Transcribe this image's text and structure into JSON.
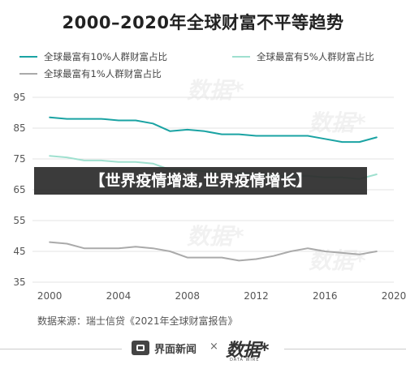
{
  "chart_data": {
    "type": "line",
    "title": "2000–2020年全球财富不平等趋势",
    "x": [
      2000,
      2001,
      2002,
      2003,
      2004,
      2005,
      2006,
      2007,
      2008,
      2009,
      2010,
      2011,
      2012,
      2013,
      2014,
      2015,
      2016,
      2017,
      2018,
      2019
    ],
    "x_ticks": [
      2000,
      2004,
      2008,
      2012,
      2016,
      2020
    ],
    "y_ticks": [
      35,
      45,
      55,
      65,
      75,
      85,
      95
    ],
    "xlim": [
      1999,
      2020
    ],
    "ylim": [
      35,
      95
    ],
    "grid": "horizontal",
    "legend_position": "top",
    "series": [
      {
        "name": "全球最富有10%人群财富占比",
        "color": "#1aa3a3",
        "values": [
          88.5,
          88,
          88,
          88,
          87.5,
          87.5,
          86.5,
          84,
          84.5,
          84,
          83,
          83,
          82.5,
          82.5,
          82.5,
          82.5,
          81.5,
          80.5,
          80.5,
          82
        ]
      },
      {
        "name": "全球最富有5%人群财富占比",
        "color": "#9fe0cf",
        "values": [
          76,
          75.5,
          74.5,
          74.5,
          74,
          74,
          73.5,
          71.5,
          71.5,
          71,
          70.5,
          70.5,
          70,
          69.5,
          69.5,
          69.5,
          69,
          69,
          68.5,
          70
        ]
      },
      {
        "name": "全球最富有1%人群财富占比",
        "color": "#aaaaaa",
        "values": [
          48,
          47.5,
          46,
          46,
          46,
          46.5,
          46,
          45,
          43,
          43,
          43,
          42,
          42.5,
          43.5,
          45,
          46,
          45,
          44.5,
          44,
          45
        ]
      }
    ]
  },
  "banner": "【世界疫情增速,世界疫情增长】",
  "source_note": "数据来源：瑞士信贷《2021年全球财富报告》",
  "footer": {
    "publisher": "界面新闻",
    "separator": "×",
    "partner": "数据*",
    "partner_sub": "DATA WIRE"
  },
  "watermark": "数据*"
}
